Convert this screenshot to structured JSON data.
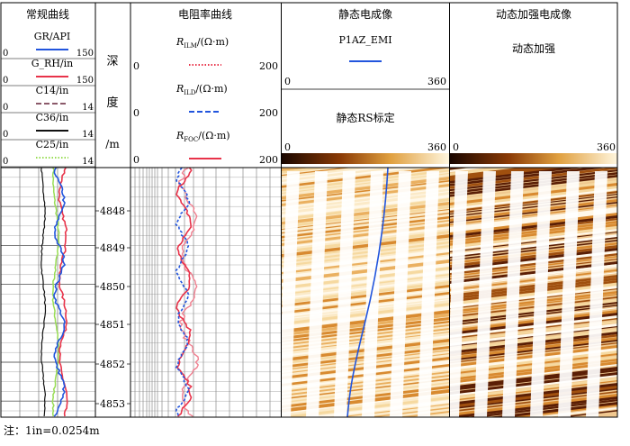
{
  "tracks": {
    "conventional": {
      "title": "常规曲线",
      "curves": [
        {
          "label": "GR/API",
          "min": "0",
          "max": "150",
          "color": "#2255dd",
          "dash": "solid"
        },
        {
          "label": "G_RH/in",
          "min": "0",
          "max": "150",
          "color": "#e8334a",
          "dash": "solid"
        },
        {
          "label": "C14/in",
          "min": "0",
          "max": "14",
          "color": "#8b5a6a",
          "dash": "dash"
        },
        {
          "label": "C36/in",
          "min": "0",
          "max": "14",
          "color": "#111111",
          "dash": "solid"
        },
        {
          "label": "C25/in",
          "min": "0",
          "max": "14",
          "color": "#99dd55",
          "dash": "dot"
        }
      ]
    },
    "depth": {
      "title_chars": [
        "深",
        "度",
        "/m"
      ],
      "ticks": [
        "4848",
        "4849",
        "4850",
        "4851",
        "4852",
        "4853"
      ]
    },
    "resistivity": {
      "title": "电阻率曲线",
      "curves": [
        {
          "name": "R",
          "sub": "ILM",
          "unit": "/(Ω·m)",
          "min": "0",
          "max": "200",
          "color": "#e8334a",
          "dash": "dot"
        },
        {
          "name": "R",
          "sub": "ILD",
          "unit": "/(Ω·m)",
          "min": "0",
          "max": "200",
          "color": "#2255dd",
          "dash": "dash"
        },
        {
          "name": "R",
          "sub": "FOC",
          "unit": "/(Ω·m)",
          "min": "0",
          "max": "200",
          "color": "#e8334a",
          "dash": "solid"
        }
      ]
    },
    "static": {
      "title": "静态电成像",
      "curve_label": "P1AZ_EMI",
      "curve_color": "#2255dd",
      "scale_min": "0",
      "scale_max": "360",
      "scale_title": "静态RS标定"
    },
    "dynamic": {
      "title": "动态加强电成像",
      "scale_title": "动态加强",
      "scale_min": "0",
      "scale_max": "360"
    }
  },
  "note": "注：1in=0.0254m"
}
